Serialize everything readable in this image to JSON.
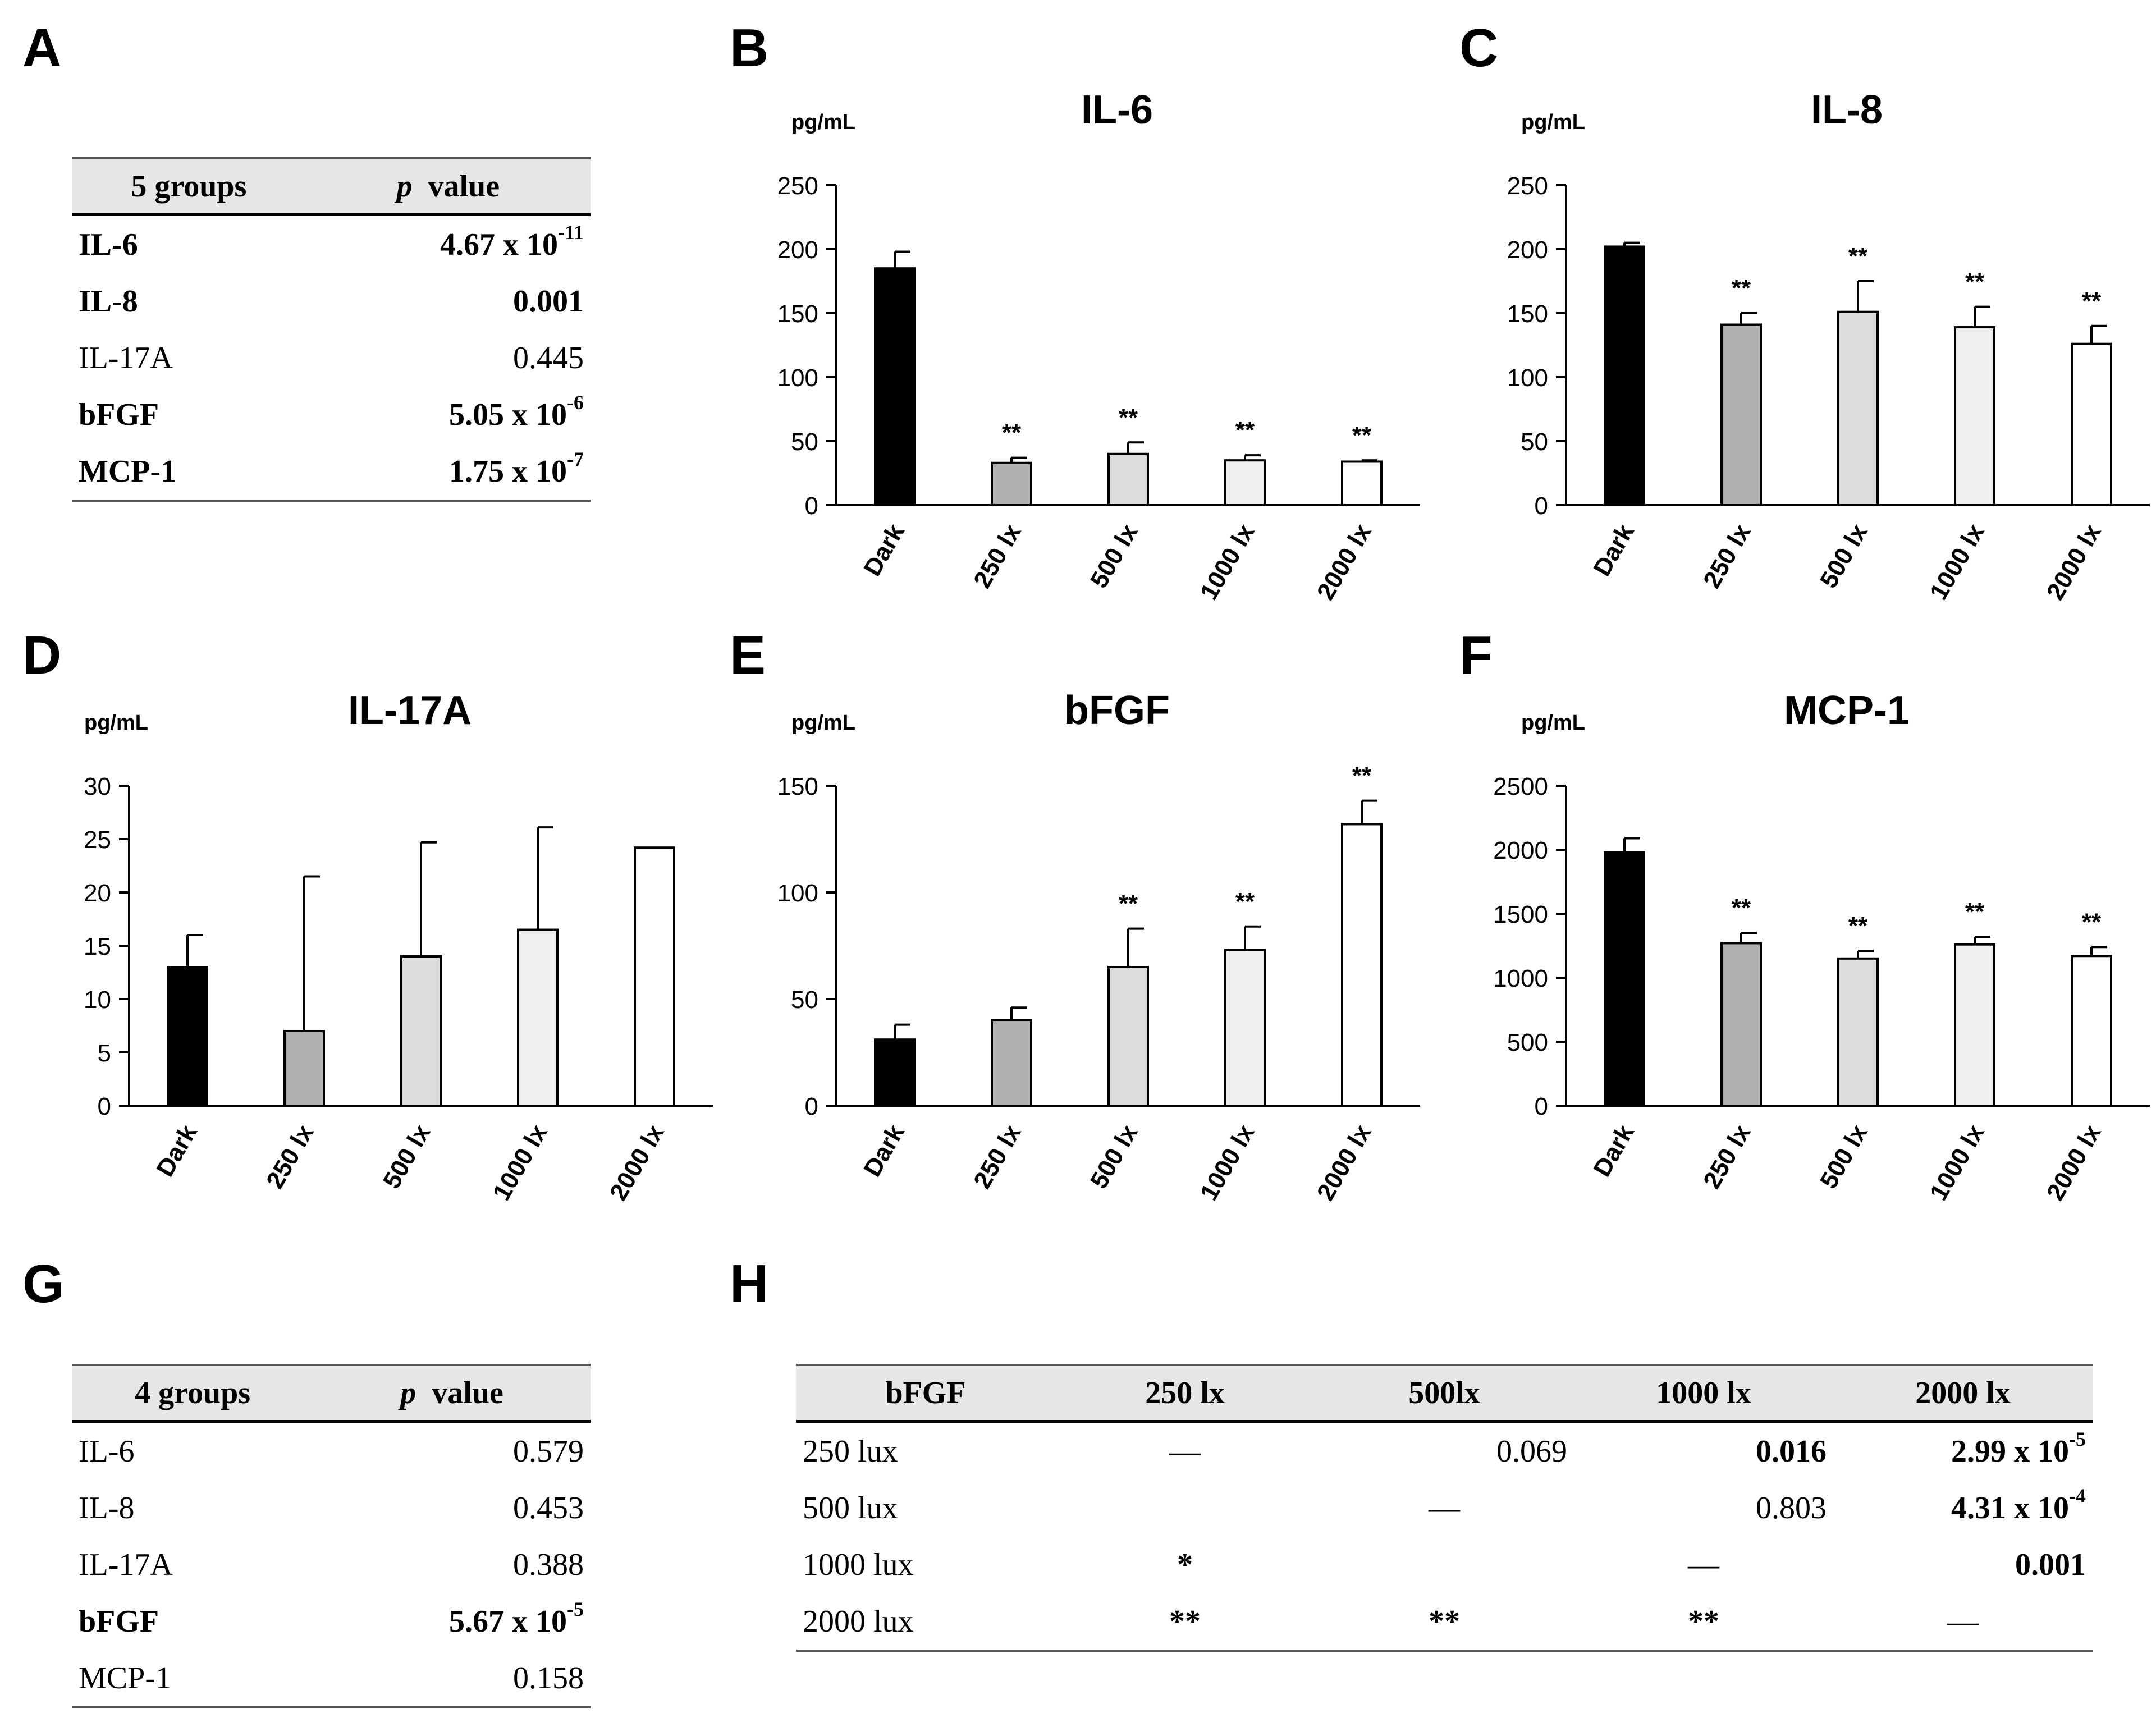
{
  "panel_letters": [
    "A",
    "B",
    "C",
    "D",
    "E",
    "F",
    "G",
    "H"
  ],
  "colors": {
    "Dark": "#000000",
    "250 lx": "#b0b0b0",
    "500 lx": "#dcdcdc",
    "1000 lx": "#efefef",
    "2000 lx": "#ffffff"
  },
  "table_a": {
    "header": {
      "group": "5 groups",
      "p_italic": "p",
      "p_rest": "value"
    },
    "rows": [
      {
        "name": "IL-6",
        "base": "4.67 x 10",
        "exp": "-11",
        "bold": true
      },
      {
        "name": "IL-8",
        "base": "0.001",
        "exp": "",
        "bold": true
      },
      {
        "name": "IL-17A",
        "base": "0.445",
        "exp": "",
        "bold": false
      },
      {
        "name": "bFGF",
        "base": "5.05 x 10",
        "exp": "-6",
        "bold": true
      },
      {
        "name": "MCP-1",
        "base": "1.75 x 10",
        "exp": "-7",
        "bold": true
      }
    ]
  },
  "table_g": {
    "header": {
      "group": "4 groups",
      "p_italic": "p",
      "p_rest": "value"
    },
    "rows": [
      {
        "name": "IL-6",
        "base": "0.579",
        "exp": "",
        "bold": false
      },
      {
        "name": "IL-8",
        "base": "0.453",
        "exp": "",
        "bold": false
      },
      {
        "name": "IL-17A",
        "base": "0.388",
        "exp": "",
        "bold": false
      },
      {
        "name": "bFGF",
        "base": "5.67 x 10",
        "exp": "-5",
        "bold": true
      },
      {
        "name": "MCP-1",
        "base": "0.158",
        "exp": "",
        "bold": false
      }
    ]
  },
  "table_h": {
    "header": [
      "bFGF",
      "250 lx",
      "500lx",
      "1000 lx",
      "2000 lx"
    ],
    "rows": [
      {
        "label": "250 lux",
        "cells": [
          {
            "base": "—",
            "exp": "",
            "bold": false
          },
          {
            "base": "0.069",
            "exp": "",
            "bold": false,
            "align": "r"
          },
          {
            "base": "0.016",
            "exp": "",
            "bold": true,
            "align": "r"
          },
          {
            "base": "2.99 x 10",
            "exp": "-5",
            "bold": true,
            "align": "r"
          }
        ]
      },
      {
        "label": "500 lux",
        "cells": [
          {
            "base": "",
            "exp": "",
            "bold": false
          },
          {
            "base": "—",
            "exp": "",
            "bold": false
          },
          {
            "base": "0.803",
            "exp": "",
            "bold": false,
            "align": "r"
          },
          {
            "base": "4.31 x 10",
            "exp": "-4",
            "bold": true,
            "align": "r"
          }
        ]
      },
      {
        "label": "1000 lux",
        "cells": [
          {
            "base": "*",
            "exp": "",
            "bold": true
          },
          {
            "base": "",
            "exp": "",
            "bold": false
          },
          {
            "base": "—",
            "exp": "",
            "bold": false
          },
          {
            "base": "0.001",
            "exp": "",
            "bold": true,
            "align": "r"
          }
        ]
      },
      {
        "label": "2000 lux",
        "cells": [
          {
            "base": "**",
            "exp": "",
            "bold": true
          },
          {
            "base": "**",
            "exp": "",
            "bold": true
          },
          {
            "base": "**",
            "exp": "",
            "bold": true
          },
          {
            "base": "—",
            "exp": "",
            "bold": false
          }
        ]
      }
    ]
  },
  "chart_data": [
    {
      "id": "B",
      "type": "bar",
      "title": "IL-6",
      "ylabel": "pg/mL",
      "categories": [
        "Dark",
        "250 lx",
        "500 lx",
        "1000 lx",
        "2000 lx"
      ],
      "values": [
        185,
        33,
        40,
        35,
        34
      ],
      "errors": [
        13,
        4,
        9,
        4,
        1
      ],
      "annotations": [
        "",
        "**",
        "**",
        "**",
        "**"
      ],
      "ylim": [
        0,
        250
      ],
      "yticks": [
        0,
        50,
        100,
        150,
        200,
        250
      ]
    },
    {
      "id": "C",
      "type": "bar",
      "title": "IL-8",
      "ylabel": "pg/mL",
      "categories": [
        "Dark",
        "250 lx",
        "500 lx",
        "1000 lx",
        "2000 lx"
      ],
      "values": [
        202,
        141,
        151,
        139,
        126
      ],
      "errors": [
        3,
        9,
        24,
        16,
        14
      ],
      "annotations": [
        "",
        "**",
        "**",
        "**",
        "**"
      ],
      "ylim": [
        0,
        250
      ],
      "yticks": [
        0,
        50,
        100,
        150,
        200,
        250
      ]
    },
    {
      "id": "D",
      "type": "bar",
      "title": "IL-17A",
      "ylabel": "pg/mL",
      "categories": [
        "Dark",
        "250 lx",
        "500 lx",
        "1000 lx",
        "2000 lx"
      ],
      "values": [
        13,
        7,
        14,
        16.5,
        24.2
      ],
      "errors": [
        3,
        14.5,
        10.7,
        9.6,
        0
      ],
      "annotations": [
        "",
        "",
        "",
        "",
        ""
      ],
      "ylim": [
        0,
        30
      ],
      "yticks": [
        0,
        5,
        10,
        15,
        20,
        25,
        30
      ]
    },
    {
      "id": "E",
      "type": "bar",
      "title": "bFGF",
      "ylabel": "pg/mL",
      "categories": [
        "Dark",
        "250 lx",
        "500 lx",
        "1000 lx",
        "2000 lx"
      ],
      "values": [
        31,
        40,
        65,
        73,
        132
      ],
      "errors": [
        7,
        6,
        18,
        11,
        11
      ],
      "annotations": [
        "",
        "",
        "**",
        "**",
        "**"
      ],
      "ylim": [
        0,
        150
      ],
      "yticks": [
        0,
        50,
        100,
        150
      ]
    },
    {
      "id": "F",
      "type": "bar",
      "title": "MCP-1",
      "ylabel": "pg/mL",
      "categories": [
        "Dark",
        "250 lx",
        "500 lx",
        "1000 lx",
        "2000 lx"
      ],
      "values": [
        1980,
        1270,
        1150,
        1260,
        1170
      ],
      "errors": [
        110,
        80,
        60,
        60,
        70
      ],
      "annotations": [
        "",
        "**",
        "**",
        "**",
        "**"
      ],
      "ylim": [
        0,
        2500
      ],
      "yticks": [
        0,
        500,
        1000,
        1500,
        2000,
        2500
      ]
    }
  ]
}
